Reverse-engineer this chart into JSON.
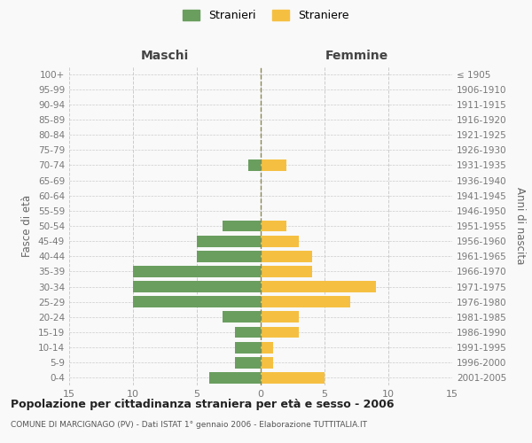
{
  "age_groups_bottom_to_top": [
    "0-4",
    "5-9",
    "10-14",
    "15-19",
    "20-24",
    "25-29",
    "30-34",
    "35-39",
    "40-44",
    "45-49",
    "50-54",
    "55-59",
    "60-64",
    "65-69",
    "70-74",
    "75-79",
    "80-84",
    "85-89",
    "90-94",
    "95-99",
    "100+"
  ],
  "birth_years_bottom_to_top": [
    "2001-2005",
    "1996-2000",
    "1991-1995",
    "1986-1990",
    "1981-1985",
    "1976-1980",
    "1971-1975",
    "1966-1970",
    "1961-1965",
    "1956-1960",
    "1951-1955",
    "1946-1950",
    "1941-1945",
    "1936-1940",
    "1931-1935",
    "1926-1930",
    "1921-1925",
    "1916-1920",
    "1911-1915",
    "1906-1910",
    "≤ 1905"
  ],
  "males_bottom_to_top": [
    4,
    2,
    2,
    2,
    3,
    10,
    10,
    10,
    5,
    5,
    3,
    0,
    0,
    0,
    1,
    0,
    0,
    0,
    0,
    0,
    0
  ],
  "females_bottom_to_top": [
    5,
    1,
    1,
    3,
    3,
    7,
    9,
    4,
    4,
    3,
    2,
    0,
    0,
    0,
    2,
    0,
    0,
    0,
    0,
    0,
    0
  ],
  "male_color": "#6a9e5f",
  "female_color": "#f5c042",
  "background_color": "#f9f9f9",
  "grid_color": "#cccccc",
  "title": "Popolazione per cittadinanza straniera per età e sesso - 2006",
  "subtitle": "COMUNE DI MARCIGNAGO (PV) - Dati ISTAT 1° gennaio 2006 - Elaborazione TUTTITALIA.IT",
  "header_left": "Maschi",
  "header_right": "Femmine",
  "ylabel_left": "Fasce di età",
  "ylabel_right": "Anni di nascita",
  "legend_male": "Stranieri",
  "legend_female": "Straniere",
  "xlim": 15
}
